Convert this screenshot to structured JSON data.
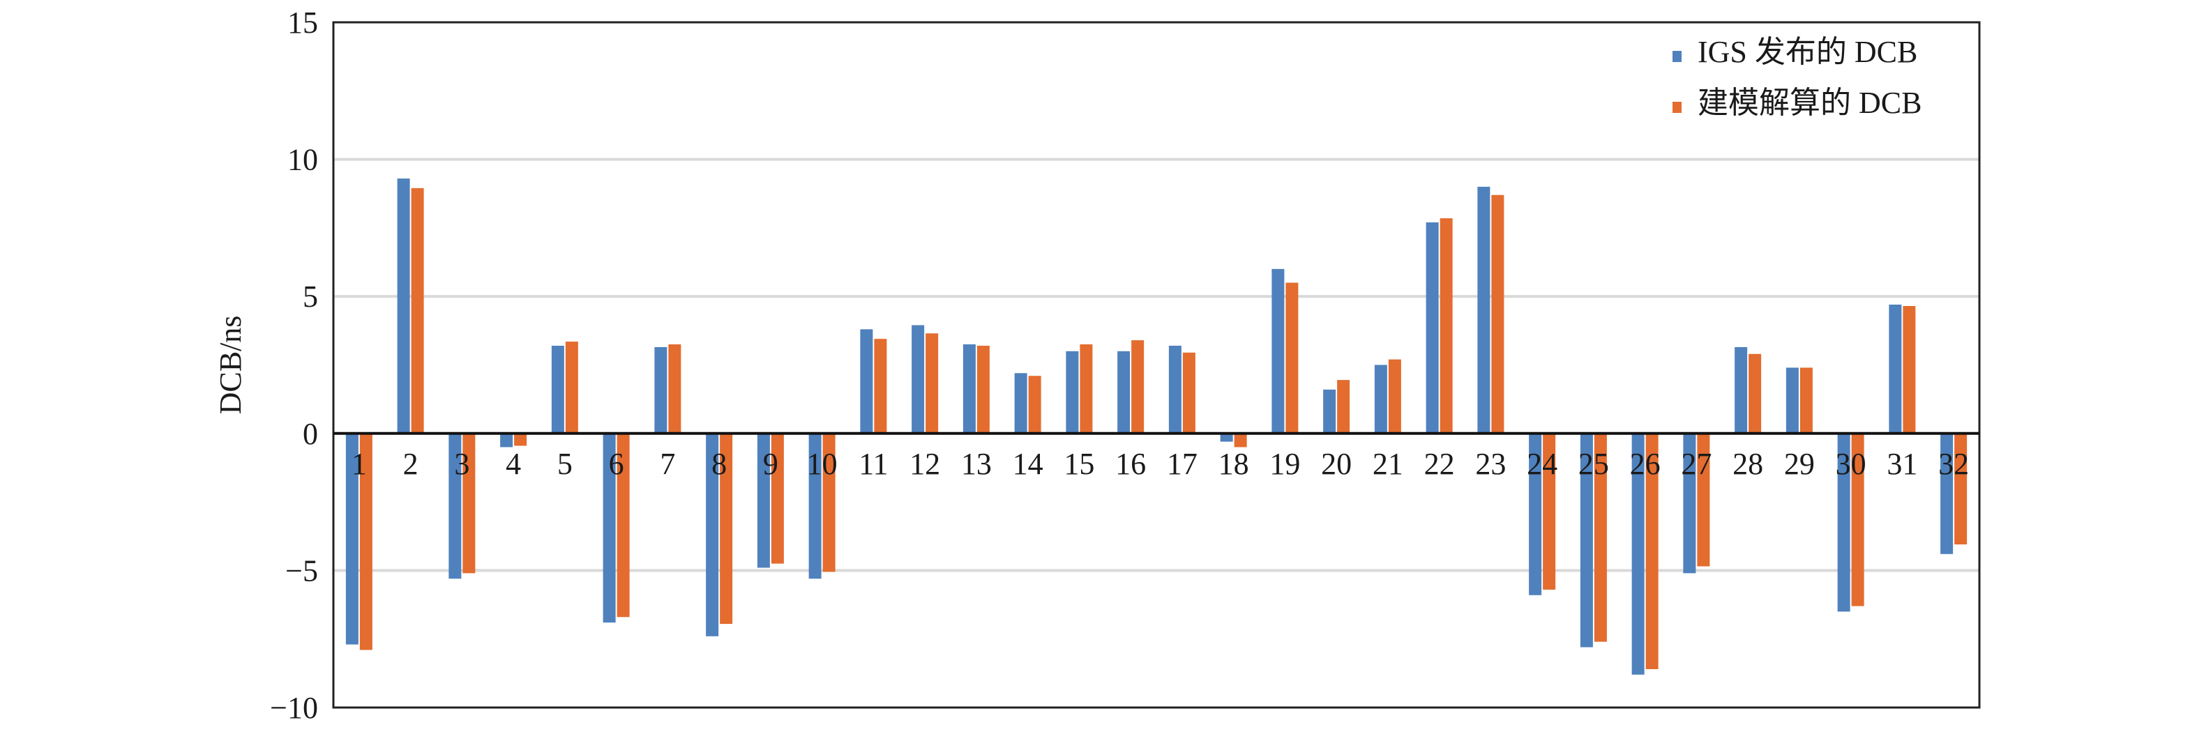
{
  "chart_data": {
    "type": "bar",
    "title": "",
    "xlabel": "",
    "ylabel": "DCB/ns",
    "ylim": [
      -10,
      15
    ],
    "yticks": [
      15,
      10,
      5,
      0,
      -5,
      -10
    ],
    "ytick_labels": [
      "15",
      "10",
      "5",
      "0",
      "−5",
      "−10"
    ],
    "grid": true,
    "legend_position": "top-right",
    "categories": [
      "1",
      "2",
      "3",
      "4",
      "5",
      "6",
      "7",
      "8",
      "9",
      "10",
      "11",
      "12",
      "13",
      "14",
      "15",
      "16",
      "17",
      "18",
      "19",
      "20",
      "21",
      "22",
      "23",
      "24",
      "25",
      "26",
      "27",
      "28",
      "29",
      "30",
      "31",
      "32"
    ],
    "series": [
      {
        "name": "IGS 发布的 DCB",
        "color": "#4f81bd",
        "values": [
          -7.7,
          9.3,
          -5.3,
          -0.5,
          3.2,
          -6.9,
          3.15,
          -7.4,
          -4.9,
          -5.3,
          3.8,
          3.95,
          3.25,
          2.2,
          3.0,
          3.0,
          3.2,
          -0.3,
          6.0,
          1.6,
          2.5,
          7.7,
          9.0,
          -5.9,
          -7.8,
          -8.8,
          -5.1,
          3.15,
          2.4,
          -6.5,
          4.7,
          -4.4
        ]
      },
      {
        "name": "建模解算的 DCB",
        "color": "#e46c2f",
        "values": [
          -7.9,
          8.95,
          -5.1,
          -0.45,
          3.35,
          -6.7,
          3.25,
          -6.95,
          -4.75,
          -5.05,
          3.45,
          3.65,
          3.2,
          2.1,
          3.25,
          3.4,
          2.95,
          -0.5,
          5.5,
          1.95,
          2.7,
          7.85,
          8.7,
          -5.7,
          -7.6,
          -8.6,
          -4.85,
          2.9,
          2.4,
          -6.3,
          4.65,
          -4.05
        ]
      }
    ]
  }
}
